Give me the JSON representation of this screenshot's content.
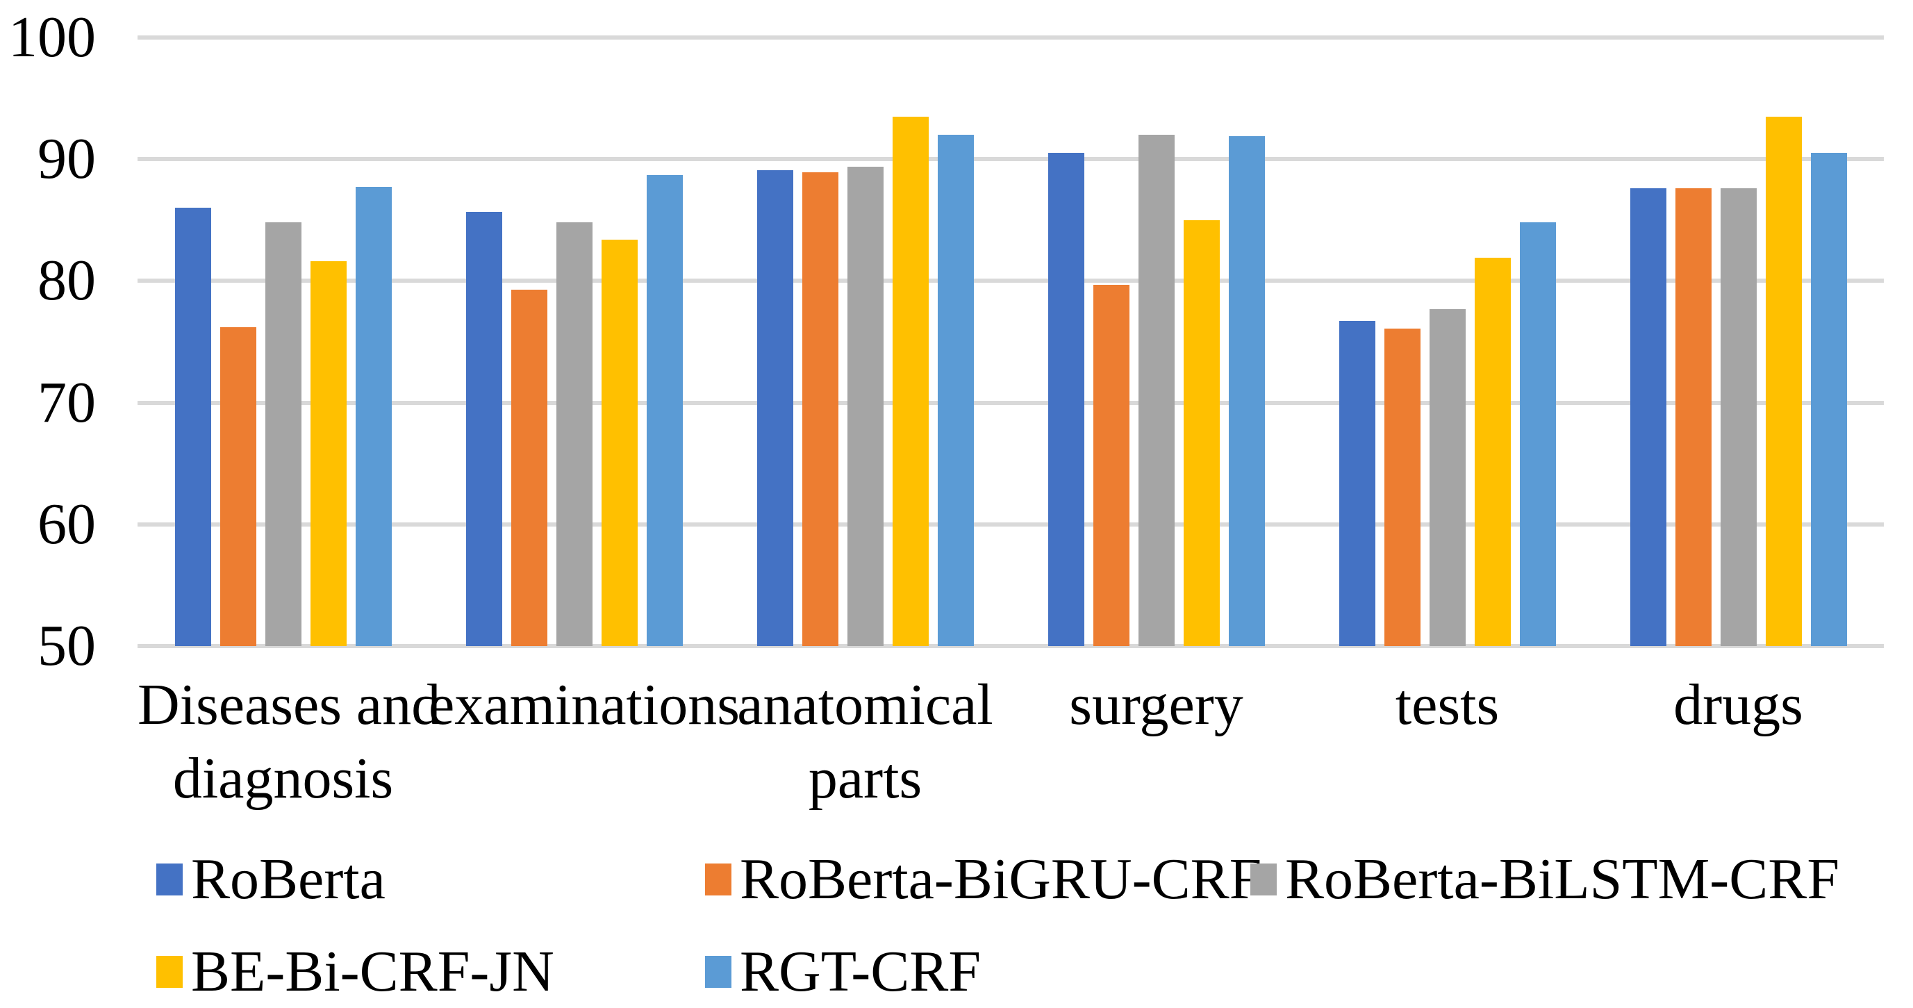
{
  "chart_data": {
    "type": "bar",
    "title": "",
    "xlabel": "",
    "ylabel": "",
    "categories": [
      "Diseases and diagnosis",
      "examinations",
      "anatomical parts",
      "surgery",
      "tests",
      "drugs"
    ],
    "category_label_lines": [
      [
        "Diseases and",
        "diagnosis"
      ],
      [
        "examinations"
      ],
      [
        "anatomical",
        "parts"
      ],
      [
        "surgery"
      ],
      [
        "tests"
      ],
      [
        "drugs"
      ]
    ],
    "series": [
      {
        "name": "RoBerta",
        "color": "#4472C4",
        "values": [
          86.0,
          85.7,
          89.1,
          90.5,
          76.7,
          87.6
        ]
      },
      {
        "name": "RoBerta-BiGRU-CRF",
        "color": "#ED7D31",
        "values": [
          76.2,
          79.3,
          88.9,
          79.7,
          76.1,
          87.6
        ]
      },
      {
        "name": "RoBerta-BiLSTM-CRF",
        "color": "#A5A5A5",
        "values": [
          84.8,
          84.8,
          89.4,
          92.0,
          77.7,
          87.6
        ]
      },
      {
        "name": "BE-Bi-CRF-JN",
        "color": "#FFC000",
        "values": [
          81.6,
          83.4,
          93.5,
          85.0,
          81.9,
          93.5
        ]
      },
      {
        "name": "RGT-CRF",
        "color": "#5B9BD5",
        "values": [
          87.7,
          88.7,
          92.0,
          91.9,
          84.8,
          90.5
        ]
      }
    ],
    "y_axis": {
      "min": 50,
      "max": 100,
      "step": 10,
      "tick_labels": [
        "50",
        "60",
        "70",
        "80",
        "90",
        "100"
      ]
    },
    "grid": true,
    "gridline_color": "#D9D9D9",
    "background_color": "#FFFFFF",
    "text_color": "#000000",
    "legend": {
      "position": "bottom",
      "rows": [
        [
          "RoBerta",
          "RoBerta-BiGRU-CRF",
          "RoBerta-BiLSTM-CRF"
        ],
        [
          "BE-Bi-CRF-JN",
          "RGT-CRF"
        ]
      ]
    }
  }
}
